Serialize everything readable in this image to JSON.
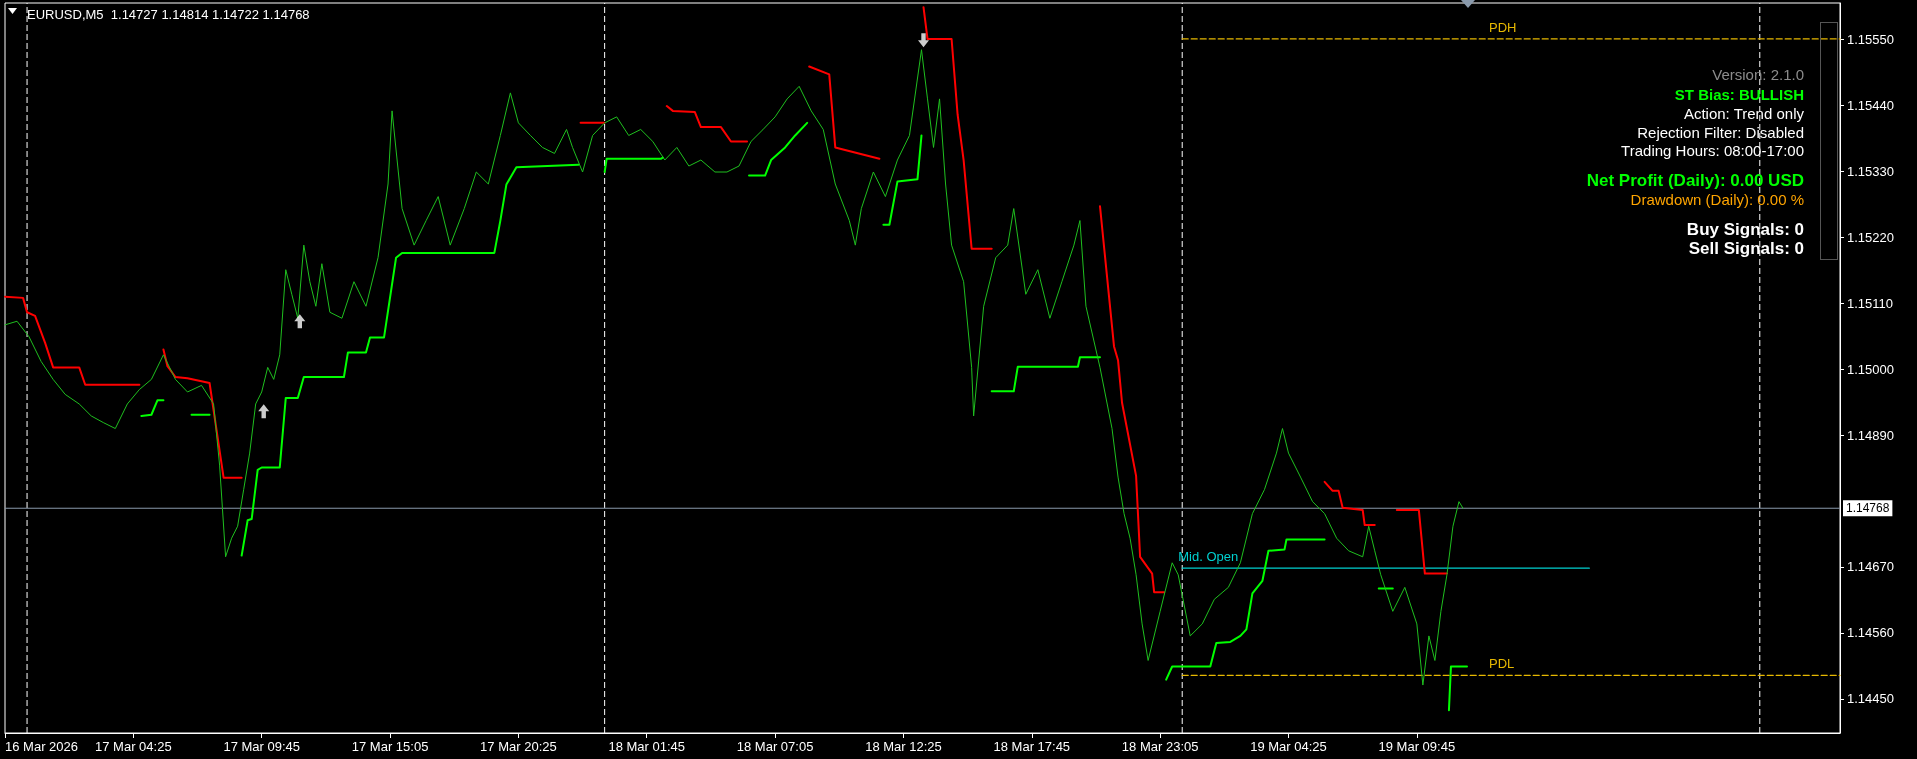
{
  "chart_data": {
    "type": "line",
    "title": "EURUSD,M5  1.14727 1.14814 1.14722 1.14768",
    "xlim": [
      "2026-03-16T23:05",
      "2026-03-20T03:20"
    ],
    "xticks": [
      {
        "value": "2026-03-16T23:05",
        "label": "16 Mar 2026"
      },
      {
        "value": "2026-03-17T04:25",
        "label": "17 Mar 04:25"
      },
      {
        "value": "2026-03-17T09:45",
        "label": "17 Mar 09:45"
      },
      {
        "value": "2026-03-17T15:05",
        "label": "17 Mar 15:05"
      },
      {
        "value": "2026-03-17T20:25",
        "label": "17 Mar 20:25"
      },
      {
        "value": "2026-03-18T01:45",
        "label": "18 Mar 01:45"
      },
      {
        "value": "2026-03-18T07:05",
        "label": "18 Mar 07:05"
      },
      {
        "value": "2026-03-18T12:25",
        "label": "18 Mar 12:25"
      },
      {
        "value": "2026-03-18T17:45",
        "label": "18 Mar 17:45"
      },
      {
        "value": "2026-03-18T23:05",
        "label": "18 Mar 23:05"
      },
      {
        "value": "2026-03-19T04:25",
        "label": "19 Mar 04:25"
      },
      {
        "value": "2026-03-19T09:45",
        "label": "19 Mar 09:45"
      }
    ],
    "ylim": [
      1.14393,
      1.15611
    ],
    "yticks": [
      {
        "value": 1.1445,
        "label": "1.14450"
      },
      {
        "value": 1.1456,
        "label": "1.14560"
      },
      {
        "value": 1.1467,
        "label": "1.14670"
      },
      {
        "value": 1.1489,
        "label": "1.14890"
      },
      {
        "value": 1.15,
        "label": "1.15000"
      },
      {
        "value": 1.1511,
        "label": "1.15110"
      },
      {
        "value": 1.1522,
        "label": "1.15220"
      },
      {
        "value": 1.1533,
        "label": "1.15330"
      },
      {
        "value": 1.1544,
        "label": "1.15440"
      },
      {
        "value": 1.1555,
        "label": "1.15550"
      }
    ],
    "grid": false,
    "legend": false,
    "marker": "none",
    "line_style": "solid",
    "series": [
      {
        "color": "#1fbf1f",
        "x": [
          "2026-03-16T23:05",
          "2026-03-16T23:35",
          "2026-03-17T00:05",
          "2026-03-17T00:35",
          "2026-03-17T01:05",
          "2026-03-17T01:35",
          "2026-03-17T02:10",
          "2026-03-17T02:40",
          "2026-03-17T03:10",
          "2026-03-17T03:40",
          "2026-03-17T04:10",
          "2026-03-17T04:40",
          "2026-03-17T05:10",
          "2026-03-17T05:40",
          "2026-03-17T06:10",
          "2026-03-17T06:40",
          "2026-03-17T07:15",
          "2026-03-17T07:45",
          "2026-03-17T08:00",
          "2026-03-17T08:15",
          "2026-03-17T08:30",
          "2026-03-17T08:45",
          "2026-03-17T09:00",
          "2026-03-17T09:15",
          "2026-03-17T09:30",
          "2026-03-17T09:45",
          "2026-03-17T10:00",
          "2026-03-17T10:15",
          "2026-03-17T10:30",
          "2026-03-17T10:45",
          "2026-03-17T11:00",
          "2026-03-17T11:15",
          "2026-03-17T11:30",
          "2026-03-17T11:45",
          "2026-03-17T12:00",
          "2026-03-17T12:15",
          "2026-03-17T12:35",
          "2026-03-17T13:05",
          "2026-03-17T13:35",
          "2026-03-17T14:05",
          "2026-03-17T14:35",
          "2026-03-17T15:00",
          "2026-03-17T15:10",
          "2026-03-17T15:35",
          "2026-03-17T16:05",
          "2026-03-17T16:35",
          "2026-03-17T17:05",
          "2026-03-17T17:35",
          "2026-03-17T18:10",
          "2026-03-17T18:40",
          "2026-03-17T19:10",
          "2026-03-17T19:40",
          "2026-03-17T20:05",
          "2026-03-17T20:25",
          "2026-03-17T20:55",
          "2026-03-17T21:25",
          "2026-03-17T21:55",
          "2026-03-17T22:25",
          "2026-03-17T22:40",
          "2026-03-17T23:05",
          "2026-03-17T23:30",
          "2026-03-18T00:00",
          "2026-03-18T00:30",
          "2026-03-18T01:00",
          "2026-03-18T01:30",
          "2026-03-18T02:00",
          "2026-03-18T02:30",
          "2026-03-18T03:00",
          "2026-03-18T03:30",
          "2026-03-18T04:00",
          "2026-03-18T04:35",
          "2026-03-18T05:05",
          "2026-03-18T05:35",
          "2026-03-18T06:05",
          "2026-03-18T06:35",
          "2026-03-18T07:05",
          "2026-03-18T07:35",
          "2026-03-18T08:05",
          "2026-03-18T08:35",
          "2026-03-18T09:05",
          "2026-03-18T09:35",
          "2026-03-18T10:10",
          "2026-03-18T10:25",
          "2026-03-18T10:40",
          "2026-03-18T11:10",
          "2026-03-18T11:40",
          "2026-03-18T12:10",
          "2026-03-18T12:40",
          "2026-03-18T13:10",
          "2026-03-18T13:25",
          "2026-03-18T13:40",
          "2026-03-18T13:55",
          "2026-03-18T14:10",
          "2026-03-18T14:25",
          "2026-03-18T14:55",
          "2026-03-18T15:15",
          "2026-03-18T15:20",
          "2026-03-18T15:45",
          "2026-03-18T16:15",
          "2026-03-18T16:45",
          "2026-03-18T17:00",
          "2026-03-18T17:30",
          "2026-03-18T18:00",
          "2026-03-18T18:30",
          "2026-03-18T19:00",
          "2026-03-18T19:30",
          "2026-03-18T19:45",
          "2026-03-18T20:00",
          "2026-03-18T20:35",
          "2026-03-18T21:05",
          "2026-03-18T21:20",
          "2026-03-18T21:35",
          "2026-03-18T21:50",
          "2026-03-18T22:05",
          "2026-03-18T22:20",
          "2026-03-18T22:35",
          "2026-03-18T23:05",
          "2026-03-18T23:35",
          "2026-03-18T23:50",
          "2026-03-19T00:20",
          "2026-03-19T00:50",
          "2026-03-19T01:20",
          "2026-03-19T01:55",
          "2026-03-19T02:25",
          "2026-03-19T02:55",
          "2026-03-19T03:25",
          "2026-03-19T03:55",
          "2026-03-19T04:10",
          "2026-03-19T04:25",
          "2026-03-19T04:55",
          "2026-03-19T05:25",
          "2026-03-19T05:55",
          "2026-03-19T06:25",
          "2026-03-19T06:55",
          "2026-03-19T07:30",
          "2026-03-19T07:45",
          "2026-03-19T08:00",
          "2026-03-19T08:15",
          "2026-03-19T08:45",
          "2026-03-19T09:15",
          "2026-03-19T09:45",
          "2026-03-19T10:00",
          "2026-03-19T10:15",
          "2026-03-19T10:30",
          "2026-03-19T10:45",
          "2026-03-19T11:00",
          "2026-03-19T11:15",
          "2026-03-19T11:30",
          "2026-03-19T11:40"
        ],
        "values": [
          1.15074,
          1.1508,
          1.15054,
          1.15013,
          1.14983,
          1.14958,
          1.14942,
          1.14922,
          1.14911,
          1.14901,
          1.14942,
          1.14966,
          1.14983,
          1.15024,
          1.14983,
          1.14962,
          1.14973,
          1.14942,
          1.1484,
          1.14687,
          1.14718,
          1.14738,
          1.14799,
          1.1486,
          1.14942,
          1.14962,
          1.15003,
          1.14983,
          1.15024,
          1.15166,
          1.15125,
          1.15085,
          1.15207,
          1.15146,
          1.15105,
          1.15176,
          1.15095,
          1.15085,
          1.15146,
          1.15105,
          1.15186,
          1.15309,
          1.15431,
          1.15268,
          1.15207,
          1.15248,
          1.15288,
          1.15207,
          1.15268,
          1.15329,
          1.15309,
          1.1539,
          1.15461,
          1.15411,
          1.1539,
          1.1537,
          1.1536,
          1.154,
          1.1537,
          1.15329,
          1.1539,
          1.15411,
          1.15421,
          1.1539,
          1.154,
          1.1538,
          1.15349,
          1.1537,
          1.15339,
          1.15349,
          1.15329,
          1.15329,
          1.15339,
          1.1538,
          1.154,
          1.15421,
          1.15451,
          1.15472,
          1.15431,
          1.154,
          1.15309,
          1.15248,
          1.15207,
          1.15268,
          1.15329,
          1.15288,
          1.15349,
          1.1539,
          1.15533,
          1.15451,
          1.1537,
          1.15451,
          1.15309,
          1.15207,
          1.15146,
          1.15003,
          1.14922,
          1.15105,
          1.15186,
          1.15207,
          1.15268,
          1.15125,
          1.15166,
          1.15085,
          1.15146,
          1.15207,
          1.15248,
          1.15105,
          1.15003,
          1.14901,
          1.1482,
          1.14759,
          1.14718,
          1.14657,
          1.14575,
          1.14514,
          1.14596,
          1.14677,
          1.14657,
          1.14555,
          1.14575,
          1.14616,
          1.14636,
          1.14677,
          1.14759,
          1.14799,
          1.1486,
          1.14901,
          1.1486,
          1.1482,
          1.14779,
          1.14759,
          1.14718,
          1.14697,
          1.14687,
          1.14738,
          1.14697,
          1.14657,
          1.14596,
          1.14636,
          1.14575,
          1.14473,
          1.14555,
          1.14514,
          1.14596,
          1.14657,
          1.14738,
          1.14779,
          1.14768
        ]
      },
      {
        "color": "#ff0000",
        "x": [
          "2026-03-16T23:05",
          "2026-03-16T23:50",
          "2026-03-17T00:00",
          "2026-03-17T00:20",
          "2026-03-17T00:45",
          "2026-03-17T01:05",
          "2026-03-17T02:10",
          "2026-03-17T02:25",
          "2026-03-17T04:40",
          "2026-03-17T05:10",
          "2026-03-17T05:40",
          "2026-03-17T05:50",
          "2026-03-17T06:10",
          "2026-03-17T06:40",
          "2026-03-17T07:35",
          "2026-03-17T08:10",
          "2026-03-17T08:55",
          "2026-03-17T15:45",
          "2026-03-17T23:00",
          "2026-03-18T00:00",
          "2026-03-18T01:20",
          "2026-03-18T02:35",
          "2026-03-18T02:50",
          "2026-03-18T03:45",
          "2026-03-18T04:00",
          "2026-03-18T04:50",
          "2026-03-18T05:15",
          "2026-03-18T05:55",
          "2026-03-18T07:10",
          "2026-03-18T08:30",
          "2026-03-18T09:20",
          "2026-03-18T09:35",
          "2026-03-18T11:25",
          "2026-03-18T12:20",
          "2026-03-18T13:15",
          "2026-03-18T13:25",
          "2026-03-18T14:25",
          "2026-03-18T14:40",
          "2026-03-18T14:55",
          "2026-03-18T15:15",
          "2026-03-18T16:05",
          "2026-03-18T18:25",
          "2026-03-18T20:35",
          "2026-03-18T21:10",
          "2026-03-18T21:20",
          "2026-03-18T21:30",
          "2026-03-18T22:05",
          "2026-03-18T22:15",
          "2026-03-18T22:45",
          "2026-03-18T22:50",
          "2026-03-18T23:15",
          "2026-03-19T02:45",
          "2026-03-19T05:55",
          "2026-03-19T06:15",
          "2026-03-19T06:30",
          "2026-03-19T06:40",
          "2026-03-19T07:30",
          "2026-03-19T07:35",
          "2026-03-19T08:00",
          "2026-03-19T08:25",
          "2026-03-19T08:55",
          "2026-03-19T09:50",
          "2026-03-19T10:05",
          "2026-03-19T11:00"
        ],
        "values": [
          1.15121,
          1.15119,
          1.15095,
          1.15089,
          1.15044,
          1.15003,
          1.15003,
          1.14974,
          1.14974,
          null,
          1.15033,
          1.15005,
          1.14987,
          1.14985,
          1.14977,
          1.14819,
          1.14819,
          null,
          1.15411,
          1.15411,
          null,
          1.15439,
          1.15431,
          1.15429,
          1.15404,
          1.15404,
          1.1538,
          1.1538,
          null,
          1.15505,
          1.15492,
          1.1537,
          1.15351,
          null,
          1.15604,
          1.15551,
          1.15551,
          1.15425,
          1.15349,
          1.15201,
          1.15201,
          null,
          1.15272,
          1.15038,
          1.15015,
          1.14944,
          1.14822,
          1.14687,
          1.14659,
          1.14628,
          1.14628,
          null,
          1.14812,
          1.14797,
          1.14797,
          1.14769,
          1.14765,
          1.1474,
          1.1474,
          null,
          1.14765,
          1.14765,
          1.14659,
          1.14659
        ]
      },
      {
        "color": "#00ff00",
        "x": [
          "2026-03-17T04:45",
          "2026-03-17T05:10",
          "2026-03-17T05:25",
          "2026-03-17T05:40",
          "2026-03-17T06:15",
          "2026-03-17T06:50",
          "2026-03-17T07:35",
          "2026-03-17T08:15",
          "2026-03-17T08:55",
          "2026-03-17T09:10",
          "2026-03-17T09:20",
          "2026-03-17T09:35",
          "2026-03-17T09:45",
          "2026-03-17T10:30",
          "2026-03-17T10:45",
          "2026-03-17T11:15",
          "2026-03-17T11:30",
          "2026-03-17T13:10",
          "2026-03-17T13:20",
          "2026-03-17T14:05",
          "2026-03-17T14:15",
          "2026-03-17T14:50",
          "2026-03-17T15:20",
          "2026-03-17T15:35",
          "2026-03-17T19:25",
          "2026-03-17T19:40",
          "2026-03-17T19:55",
          "2026-03-17T20:20",
          "2026-03-17T22:55",
          "2026-03-17T23:25",
          "2026-03-18T00:00",
          "2026-03-18T00:05",
          "2026-03-18T02:20",
          "2026-03-18T02:25",
          "2026-03-18T04:15",
          "2026-03-18T06:00",
          "2026-03-18T06:40",
          "2026-03-18T06:55",
          "2026-03-18T07:30",
          "2026-03-18T07:55",
          "2026-03-18T08:25",
          "2026-03-18T10:05",
          "2026-03-18T11:35",
          "2026-03-18T11:50",
          "2026-03-18T12:10",
          "2026-03-18T13:00",
          "2026-03-18T13:10",
          "2026-03-18T14:40",
          "2026-03-18T16:05",
          "2026-03-18T17:00",
          "2026-03-18T17:10",
          "2026-03-18T19:40",
          "2026-03-18T19:45",
          "2026-03-18T20:35",
          "2026-03-18T21:55",
          "2026-03-18T23:20",
          "2026-03-18T23:35",
          "2026-03-19T01:10",
          "2026-03-19T01:25",
          "2026-03-19T02:00",
          "2026-03-19T02:25",
          "2026-03-19T02:40",
          "2026-03-19T02:55",
          "2026-03-19T03:20",
          "2026-03-19T03:35",
          "2026-03-19T04:15",
          "2026-03-19T04:20",
          "2026-03-19T05:55",
          "2026-03-19T07:05",
          "2026-03-19T08:10",
          "2026-03-19T08:45",
          "2026-03-19T09:55",
          "2026-03-19T11:05",
          "2026-03-19T11:10",
          "2026-03-19T11:50"
        ],
        "values": [
          1.14922,
          1.14924,
          1.14948,
          1.14948,
          null,
          1.14924,
          1.14924,
          null,
          1.14689,
          1.14748,
          1.1475,
          1.14832,
          1.14836,
          1.14836,
          1.14952,
          1.14952,
          1.14987,
          1.14987,
          1.15028,
          1.15028,
          1.15053,
          1.15053,
          1.15186,
          1.15194,
          1.15194,
          1.15248,
          1.15308,
          1.15337,
          1.15341,
          null,
          1.15329,
          1.15351,
          1.15351,
          1.15353,
          null,
          1.15323,
          1.15323,
          1.15349,
          1.1537,
          1.1539,
          1.15411,
          null,
          1.15241,
          1.15241,
          1.15313,
          1.15317,
          1.1539,
          null,
          1.14963,
          1.14963,
          1.15004,
          1.15004,
          1.1502,
          1.1502,
          null,
          1.14482,
          1.14504,
          1.14504,
          1.14543,
          1.14545,
          1.14555,
          1.14566,
          1.14626,
          1.14647,
          1.14697,
          1.14699,
          1.14716,
          1.14716,
          null,
          1.14634,
          1.14634,
          null,
          1.14431,
          1.14504,
          1.14504
        ]
      },
      {
        "type": "scatter",
        "color": "#ffffff",
        "x": [
          "2026-03-17T09:50",
          "2026-03-17T11:20",
          "2026-03-18T13:15"
        ],
        "values": [
          1.1493,
          1.1508,
          1.15549
        ]
      },
      {
        "name": "PDH",
        "color": "#e6b800",
        "line_style": "dashed",
        "x": [
          "2026-03-19T00:00",
          "2026-03-19T12:55",
          "2026-03-20T03:20"
        ],
        "values": [
          1.15551,
          1.15551,
          1.15551
        ]
      },
      {
        "name": "PDL",
        "color": "#e6b800",
        "line_style": "dashed",
        "x": [
          "2026-03-19T00:00",
          "2026-03-19T12:55",
          "2026-03-20T03:20"
        ],
        "values": [
          1.14489,
          1.14489,
          1.14489
        ]
      },
      {
        "name": "Mid. Open",
        "color": "#00d0d0",
        "x": [
          "2026-03-19T00:00",
          "2026-03-19T16:55"
        ],
        "values": [
          1.14668,
          1.14668
        ]
      }
    ],
    "ref_lines": [
      {
        "axis": "x",
        "value": "2026-03-17T00:00",
        "color": "#ffffff",
        "line_style": "dashed"
      },
      {
        "axis": "x",
        "value": "2026-03-18T00:00",
        "color": "#ffffff",
        "line_style": "dashed"
      },
      {
        "axis": "x",
        "value": "2026-03-19T00:00",
        "color": "#ffffff",
        "line_style": "dashed"
      },
      {
        "axis": "x",
        "value": "2026-03-20T00:00",
        "color": "#ffffff",
        "line_style": "dashed"
      },
      {
        "axis": "y",
        "value": 1.14768,
        "label": "1.14768",
        "color": "#8a9aac",
        "line_style": "solid"
      }
    ],
    "annotations": [
      "Version: 2.1.0",
      "ST Bias: BULLISH",
      "Action: Trend only",
      "Rejection Filter: Disabled",
      "Trading Hours: 08:00-17:00",
      "Net Profit (Daily): 0.00 USD",
      "Drawdown (Daily): 0.00 %",
      "Buy Signals: 0",
      "Sell Signals: 0"
    ]
  }
}
